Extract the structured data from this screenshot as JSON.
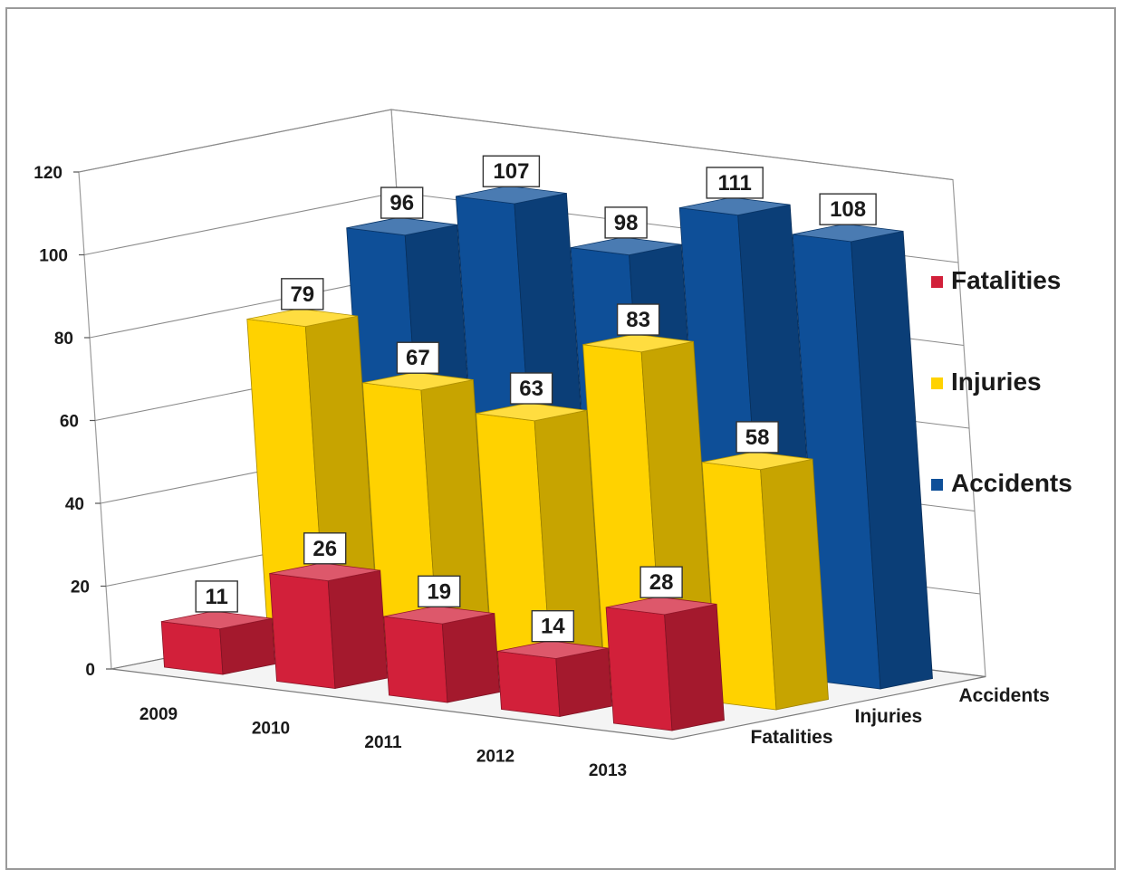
{
  "chart_data": {
    "type": "bar",
    "categories": [
      "2009",
      "2010",
      "2011",
      "2012",
      "2013"
    ],
    "series": [
      {
        "name": "Fatalities",
        "values": [
          11,
          26,
          19,
          14,
          28
        ],
        "color": "#d2203a"
      },
      {
        "name": "Injuries",
        "values": [
          79,
          67,
          63,
          83,
          58
        ],
        "color": "#ffd200"
      },
      {
        "name": "Accidents",
        "values": [
          96,
          107,
          98,
          111,
          108
        ],
        "color": "#0e4f98"
      }
    ],
    "y_ticks": [
      "0",
      "20",
      "40",
      "60",
      "80",
      "100",
      "120"
    ],
    "ylim": [
      0,
      120
    ],
    "series_axis_labels": [
      "Fatalities",
      "Injuries",
      "Accidents"
    ],
    "legend": {
      "position": "right",
      "items": [
        "Fatalities",
        "Injuries",
        "Accidents"
      ]
    },
    "title": "",
    "xlabel": "",
    "ylabel": "",
    "grid": true,
    "style": "3d-column"
  }
}
